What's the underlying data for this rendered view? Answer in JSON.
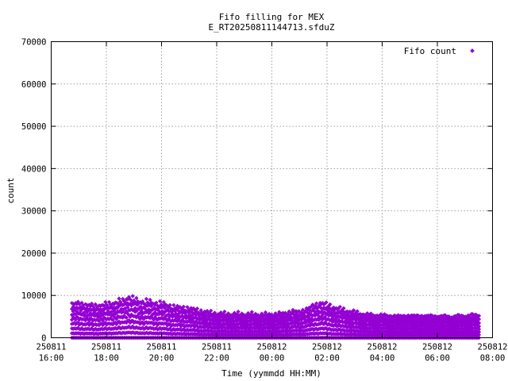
{
  "chart_data": {
    "type": "scatter",
    "title_lines": [
      "Fifo filling for MEX",
      "E_RT20250811144713.sfduZ"
    ],
    "xlabel": "Time (yymmdd HH:MM)",
    "ylabel": "count",
    "ylim": [
      0,
      70000
    ],
    "y_ticks": [
      0,
      10000,
      20000,
      30000,
      40000,
      50000,
      60000,
      70000
    ],
    "y_tick_labels": [
      "0",
      "10000",
      "20000",
      "30000",
      "40000",
      "50000",
      "60000",
      "70000"
    ],
    "x_range_hours": [
      16,
      32
    ],
    "x_ticks": [
      {
        "h": 16,
        "date": "250811",
        "time": "16:00"
      },
      {
        "h": 18,
        "date": "250811",
        "time": "18:00"
      },
      {
        "h": 20,
        "date": "250811",
        "time": "20:00"
      },
      {
        "h": 22,
        "date": "250811",
        "time": "22:00"
      },
      {
        "h": 24,
        "date": "250812",
        "time": "00:00"
      },
      {
        "h": 26,
        "date": "250812",
        "time": "02:00"
      },
      {
        "h": 28,
        "date": "250812",
        "time": "04:00"
      },
      {
        "h": 30,
        "date": "250812",
        "time": "06:00"
      },
      {
        "h": 32,
        "date": "250812",
        "time": "08:00"
      }
    ],
    "grid": true,
    "legend_position": "top-right",
    "color": "#9400d3",
    "series": [
      {
        "name": "Fifo count",
        "x_start_hour": 16.75,
        "x_end_hour": 31.55,
        "envelope": [
          [
            16.75,
            7800
          ],
          [
            17.0,
            8000
          ],
          [
            17.5,
            7400
          ],
          [
            18.0,
            7700
          ],
          [
            18.3,
            8200
          ],
          [
            18.6,
            8500
          ],
          [
            18.8,
            9600
          ],
          [
            19.0,
            8700
          ],
          [
            19.5,
            8300
          ],
          [
            20.0,
            7900
          ],
          [
            20.5,
            7100
          ],
          [
            21.0,
            6800
          ],
          [
            21.5,
            6100
          ],
          [
            22.0,
            5600
          ],
          [
            22.5,
            5500
          ],
          [
            23.0,
            5500
          ],
          [
            23.5,
            5400
          ],
          [
            24.0,
            5400
          ],
          [
            24.5,
            5700
          ],
          [
            24.8,
            6200
          ],
          [
            25.0,
            5900
          ],
          [
            25.3,
            6800
          ],
          [
            25.6,
            7600
          ],
          [
            25.8,
            8200
          ],
          [
            26.0,
            7600
          ],
          [
            26.5,
            6600
          ],
          [
            27.0,
            5900
          ],
          [
            27.5,
            5300
          ],
          [
            28.0,
            5200
          ],
          [
            28.5,
            5000
          ],
          [
            29.0,
            5100
          ],
          [
            30.0,
            5000
          ],
          [
            30.5,
            4900
          ],
          [
            31.0,
            5100
          ],
          [
            31.55,
            5300
          ]
        ],
        "band_levels": [
          0,
          0.13,
          0.27,
          0.42,
          0.57,
          0.72,
          0.86,
          1.0
        ]
      }
    ]
  }
}
